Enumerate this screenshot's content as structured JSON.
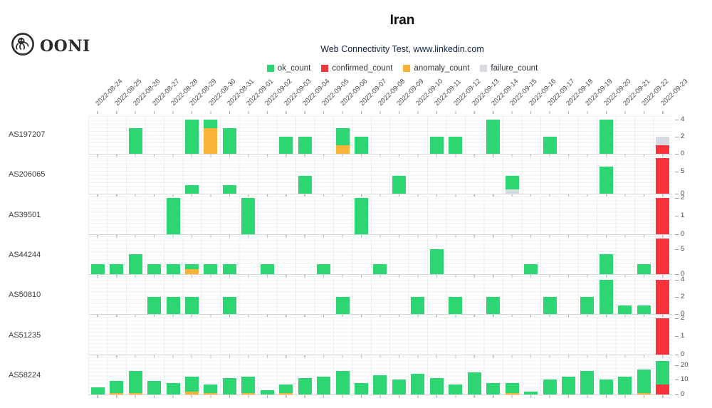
{
  "header": {
    "logo_text": "OONI"
  },
  "chart_data": {
    "type": "bar",
    "stacked": true,
    "layout": "small-multiples-by-asn",
    "title": "Iran",
    "subtitle": "Web Connectivity Test, www.linkedin.com",
    "legend_position": "top-center",
    "grid": true,
    "legend": [
      {
        "key": "ok",
        "name": "ok_count",
        "color": "#2ed573"
      },
      {
        "key": "confirmed",
        "name": "confirmed_count",
        "color": "#f8333c"
      },
      {
        "key": "anomaly",
        "name": "anomaly_count",
        "color": "#f9b437"
      },
      {
        "key": "failure",
        "name": "failure_count",
        "color": "#d5dbe0"
      }
    ],
    "x_categories": [
      "2022-08-24",
      "2022-08-25",
      "2022-08-26",
      "2022-08-27",
      "2022-08-28",
      "2022-08-29",
      "2022-08-30",
      "2022-08-31",
      "2022-09-01",
      "2022-09-02",
      "2022-09-03",
      "2022-09-04",
      "2022-09-05",
      "2022-09-06",
      "2022-09-07",
      "2022-09-08",
      "2022-09-09",
      "2022-09-10",
      "2022-09-11",
      "2022-09-12",
      "2022-09-13",
      "2022-09-14",
      "2022-09-15",
      "2022-09-16",
      "2022-09-17",
      "2022-09-18",
      "2022-09-19",
      "2022-09-20",
      "2022-09-21",
      "2022-09-22",
      "2022-09-23"
    ],
    "rows": [
      {
        "asn": "AS197207",
        "yticks": [
          0,
          2,
          4
        ],
        "ymax": 4.4,
        "bars": {
          "2022-08-26": {
            "ok": 3
          },
          "2022-08-29": {
            "ok": 4
          },
          "2022-08-30": {
            "ok": 1,
            "anomaly": 3
          },
          "2022-08-31": {
            "ok": 3
          },
          "2022-09-03": {
            "ok": 2
          },
          "2022-09-04": {
            "ok": 2
          },
          "2022-09-06": {
            "ok": 2,
            "anomaly": 1
          },
          "2022-09-07": {
            "ok": 2
          },
          "2022-09-11": {
            "ok": 2
          },
          "2022-09-12": {
            "ok": 2
          },
          "2022-09-14": {
            "ok": 4
          },
          "2022-09-17": {
            "ok": 2
          },
          "2022-09-20": {
            "ok": 4
          },
          "2022-09-23": {
            "confirmed": 1,
            "failure": 1
          }
        }
      },
      {
        "asn": "AS206065",
        "yticks": [
          0,
          5
        ],
        "ymax": 8.4,
        "bars": {
          "2022-08-29": {
            "ok": 2
          },
          "2022-08-31": {
            "ok": 2
          },
          "2022-09-04": {
            "ok": 4
          },
          "2022-09-09": {
            "ok": 4
          },
          "2022-09-15": {
            "ok": 3,
            "failure": 1
          },
          "2022-09-20": {
            "ok": 6
          },
          "2022-09-23": {
            "confirmed": 8
          }
        }
      },
      {
        "asn": "AS39501",
        "yticks": [
          0,
          1,
          2
        ],
        "ymax": 2.1,
        "bars": {
          "2022-08-28": {
            "ok": 2
          },
          "2022-09-01": {
            "ok": 2
          },
          "2022-09-07": {
            "ok": 2
          },
          "2022-09-23": {
            "confirmed": 2
          }
        }
      },
      {
        "asn": "AS44244",
        "yticks": [
          0,
          5
        ],
        "ymax": 7.5,
        "bars": {
          "2022-08-24": {
            "ok": 2
          },
          "2022-08-25": {
            "ok": 2
          },
          "2022-08-26": {
            "ok": 4
          },
          "2022-08-27": {
            "ok": 2
          },
          "2022-08-28": {
            "ok": 2
          },
          "2022-08-29": {
            "ok": 1,
            "anomaly": 1
          },
          "2022-08-30": {
            "ok": 2
          },
          "2022-08-31": {
            "ok": 2
          },
          "2022-09-02": {
            "ok": 2
          },
          "2022-09-05": {
            "ok": 2
          },
          "2022-09-08": {
            "ok": 2
          },
          "2022-09-11": {
            "ok": 5
          },
          "2022-09-16": {
            "ok": 2
          },
          "2022-09-20": {
            "ok": 4
          },
          "2022-09-22": {
            "ok": 2
          },
          "2022-09-23": {
            "confirmed": 7
          }
        }
      },
      {
        "asn": "AS50810",
        "yticks": [
          0,
          2,
          4
        ],
        "ymax": 4.4,
        "bars": {
          "2022-08-27": {
            "ok": 2
          },
          "2022-08-28": {
            "ok": 2
          },
          "2022-08-29": {
            "ok": 2
          },
          "2022-08-31": {
            "ok": 2
          },
          "2022-09-06": {
            "ok": 2
          },
          "2022-09-10": {
            "ok": 2
          },
          "2022-09-12": {
            "ok": 2
          },
          "2022-09-14": {
            "ok": 2
          },
          "2022-09-17": {
            "ok": 2
          },
          "2022-09-19": {
            "ok": 2
          },
          "2022-09-20": {
            "ok": 4
          },
          "2022-09-21": {
            "ok": 1
          },
          "2022-09-22": {
            "ok": 1
          },
          "2022-09-23": {
            "confirmed": 4
          }
        }
      },
      {
        "asn": "AS51235",
        "yticks": [
          0,
          1,
          2
        ],
        "ymax": 2.1,
        "bars": {
          "2022-09-23": {
            "confirmed": 2
          }
        }
      },
      {
        "asn": "AS58224",
        "yticks": [
          0,
          10,
          20
        ],
        "ymax": 26,
        "bars": {
          "2022-08-24": {
            "ok": 5
          },
          "2022-08-25": {
            "ok": 8,
            "anomaly": 1
          },
          "2022-08-26": {
            "ok": 15,
            "anomaly": 1
          },
          "2022-08-27": {
            "ok": 9
          },
          "2022-08-28": {
            "ok": 8
          },
          "2022-08-29": {
            "ok": 10,
            "anomaly": 2
          },
          "2022-08-30": {
            "ok": 6,
            "anomaly": 1
          },
          "2022-08-31": {
            "ok": 11
          },
          "2022-09-01": {
            "ok": 11,
            "anomaly": 1
          },
          "2022-09-02": {
            "ok": 3
          },
          "2022-09-03": {
            "ok": 6,
            "anomaly": 1
          },
          "2022-09-04": {
            "ok": 11
          },
          "2022-09-05": {
            "ok": 12
          },
          "2022-09-06": {
            "ok": 16
          },
          "2022-09-07": {
            "ok": 8
          },
          "2022-09-08": {
            "ok": 13
          },
          "2022-09-09": {
            "ok": 10
          },
          "2022-09-10": {
            "ok": 14
          },
          "2022-09-11": {
            "ok": 11
          },
          "2022-09-12": {
            "ok": 7
          },
          "2022-09-13": {
            "ok": 15
          },
          "2022-09-14": {
            "ok": 8
          },
          "2022-09-15": {
            "ok": 7,
            "anomaly": 1
          },
          "2022-09-16": {
            "ok": 2
          },
          "2022-09-17": {
            "ok": 10
          },
          "2022-09-18": {
            "ok": 12
          },
          "2022-09-19": {
            "ok": 16
          },
          "2022-09-20": {
            "ok": 10
          },
          "2022-09-21": {
            "ok": 12
          },
          "2022-09-22": {
            "ok": 16,
            "anomaly": 1
          },
          "2022-09-23": {
            "ok": 16,
            "confirmed": 7
          }
        }
      }
    ]
  }
}
